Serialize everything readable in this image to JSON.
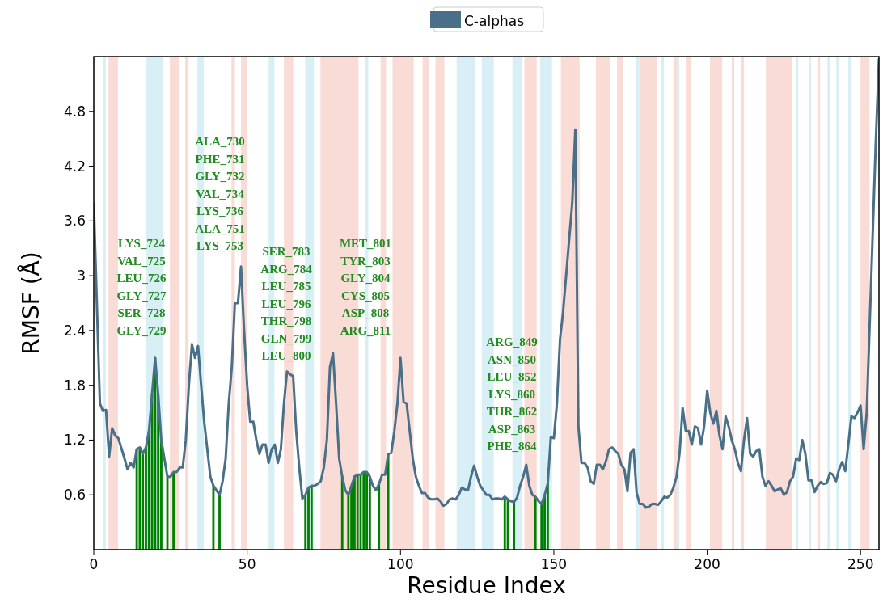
{
  "chart_data": {
    "type": "line",
    "xlabel": "Residue Index",
    "ylabel": "RMSF (Å)",
    "xlim": [
      0,
      256
    ],
    "ylim": [
      0,
      5.4
    ],
    "xticks": [
      0,
      50,
      100,
      150,
      200,
      250
    ],
    "yticks": [
      0.6,
      1.2,
      1.8,
      2.4,
      3.0,
      3.6,
      4.2,
      4.8
    ],
    "grid": false,
    "legend": "top",
    "series": [
      {
        "name": "C-alphas",
        "color": "#4a7089",
        "x": [
          0,
          2,
          3,
          4,
          5,
          6,
          7,
          8,
          10,
          11,
          12,
          13,
          14,
          15,
          16,
          17,
          18,
          19,
          20,
          21,
          22,
          23,
          24,
          25,
          26,
          27,
          28,
          29,
          30,
          31,
          32,
          33,
          34,
          35,
          36,
          37,
          38,
          39,
          40,
          41,
          42,
          43,
          44,
          45,
          46,
          47,
          48,
          49,
          50,
          51,
          52,
          53,
          54,
          55,
          56,
          57,
          58,
          59,
          60,
          61,
          62,
          63,
          64,
          65,
          66,
          67,
          68,
          69,
          70,
          71,
          72,
          73,
          74,
          75,
          76,
          77,
          78,
          79,
          80,
          81,
          82,
          83,
          84,
          85,
          86,
          87,
          88,
          89,
          90,
          91,
          92,
          93,
          94,
          95,
          96,
          97,
          98,
          99,
          100,
          101,
          102,
          103,
          104,
          105,
          106,
          107,
          108,
          109,
          110,
          111,
          112,
          113,
          114,
          115,
          116,
          117,
          118,
          119,
          120,
          121,
          122,
          123,
          124,
          125,
          126,
          127,
          128,
          129,
          130,
          131,
          132,
          133,
          134,
          135,
          136,
          137,
          138,
          139,
          140,
          141,
          142,
          143,
          144,
          145,
          146,
          147,
          148,
          149,
          150,
          151,
          152,
          153,
          154,
          155,
          156,
          157,
          158,
          159,
          160,
          161,
          162,
          163,
          164,
          165,
          166,
          167,
          168,
          169,
          170,
          171,
          172,
          173,
          174,
          175,
          176,
          177,
          178,
          179,
          180,
          181,
          182,
          183,
          184,
          185,
          186,
          187,
          188,
          189,
          190,
          191,
          192,
          193,
          194,
          195,
          196,
          197,
          198,
          199,
          200,
          201,
          202,
          203,
          204,
          205,
          206,
          207,
          208,
          209,
          210,
          211,
          212,
          213,
          214,
          215,
          216,
          217,
          218,
          219,
          220,
          221,
          222,
          223,
          224,
          225,
          226,
          227,
          228,
          229,
          230,
          231,
          232,
          233,
          234,
          235,
          236,
          237,
          238,
          239,
          240,
          241,
          242,
          243,
          244,
          245,
          246,
          247,
          248,
          249,
          250,
          251,
          252,
          253,
          254,
          255,
          256
        ],
        "values": [
          3.8,
          1.6,
          1.52,
          1.53,
          1.02,
          1.33,
          1.25,
          1.22,
          1.0,
          0.88,
          0.95,
          0.9,
          1.1,
          1.12,
          1.05,
          1.12,
          1.3,
          1.7,
          2.1,
          1.7,
          1.2,
          1.0,
          0.8,
          0.8,
          0.85,
          0.85,
          0.9,
          0.9,
          1.2,
          1.8,
          2.25,
          2.1,
          2.23,
          1.8,
          1.4,
          1.1,
          0.8,
          0.7,
          0.65,
          0.6,
          0.75,
          1.0,
          1.6,
          2.0,
          2.7,
          2.7,
          3.1,
          2.4,
          1.8,
          1.4,
          1.4,
          1.2,
          1.05,
          1.15,
          1.15,
          0.95,
          1.1,
          1.15,
          0.95,
          1.1,
          1.6,
          1.95,
          1.92,
          1.9,
          1.3,
          0.9,
          0.56,
          0.6,
          0.68,
          0.7,
          0.7,
          0.72,
          0.75,
          0.9,
          1.2,
          2.0,
          2.15,
          1.6,
          1.0,
          0.8,
          0.65,
          0.6,
          0.7,
          0.8,
          0.82,
          0.82,
          0.85,
          0.85,
          0.8,
          0.7,
          0.65,
          0.72,
          0.82,
          0.82,
          1.05,
          1.06,
          1.3,
          1.6,
          2.1,
          1.62,
          1.6,
          1.3,
          1.0,
          0.8,
          0.7,
          0.62,
          0.62,
          0.57,
          0.55,
          0.55,
          0.56,
          0.53,
          0.48,
          0.5,
          0.55,
          0.56,
          0.55,
          0.6,
          0.68,
          0.66,
          0.65,
          0.8,
          0.92,
          0.8,
          0.7,
          0.65,
          0.6,
          0.6,
          0.55,
          0.56,
          0.56,
          0.55,
          0.58,
          0.55,
          0.53,
          0.52,
          0.57,
          0.7,
          0.8,
          0.93,
          0.7,
          0.6,
          0.58,
          0.53,
          0.5,
          0.6,
          0.72,
          1.23,
          1.22,
          1.6,
          2.3,
          2.6,
          3.0,
          3.4,
          3.8,
          4.6,
          1.35,
          0.95,
          0.95,
          0.9,
          0.75,
          0.72,
          0.93,
          0.93,
          0.88,
          0.97,
          1.1,
          1.12,
          1.08,
          1.05,
          0.93,
          0.88,
          0.64,
          1.06,
          1.1,
          0.62,
          0.5,
          0.5,
          0.46,
          0.47,
          0.5,
          0.5,
          0.49,
          0.53,
          0.58,
          0.57,
          0.6,
          0.68,
          0.8,
          1.06,
          1.55,
          1.3,
          1.3,
          1.15,
          1.35,
          1.33,
          1.15,
          1.35,
          1.74,
          1.5,
          1.38,
          1.52,
          1.25,
          1.1,
          1.46,
          1.35,
          1.2,
          1.1,
          0.95,
          0.86,
          1.2,
          1.44,
          1.05,
          1.02,
          1.08,
          1.1,
          0.8,
          0.7,
          0.75,
          0.7,
          0.64,
          0.66,
          0.67,
          0.6,
          0.63,
          0.75,
          0.8,
          1.0,
          0.98,
          1.2,
          1.05,
          0.76,
          0.76,
          0.63,
          0.7,
          0.74,
          0.72,
          0.73,
          0.84,
          0.82,
          0.75,
          0.88,
          0.96,
          0.86,
          1.15,
          1.46,
          1.44,
          1.5,
          1.58,
          1.1,
          1.5,
          2.5,
          3.5,
          4.5,
          5.38
        ]
      },
      {
        "type": "bar",
        "color": "#008000",
        "x": [
          14,
          15,
          16,
          17,
          18,
          19,
          20,
          21,
          22,
          24,
          26,
          39,
          41,
          69,
          70,
          71,
          81,
          83,
          84,
          85,
          86,
          87,
          88,
          89,
          90,
          93,
          96,
          134,
          135,
          137,
          144,
          146,
          147,
          148
        ],
        "values": [
          1.1,
          1.12,
          1.05,
          1.12,
          1.3,
          1.7,
          2.1,
          1.7,
          1.2,
          0.8,
          0.85,
          0.7,
          0.6,
          0.6,
          0.68,
          0.7,
          0.8,
          0.6,
          0.7,
          0.8,
          0.82,
          0.82,
          0.85,
          0.85,
          0.8,
          0.72,
          1.05,
          0.58,
          0.55,
          0.52,
          0.58,
          0.5,
          0.6,
          0.72
        ]
      }
    ],
    "annotations": [
      "LYS_724\nVAL_725\nLEU_726\nGLY_727\nSER_728\nGLY_729",
      "ALA_730\nPHE_731\nGLY_732\nVAL_734\nLYS_736\nALA_751\nLYS_753",
      "SER_783\nARG_784\nLEU_785\nLEU_796\nTHR_798\nGLN_799\nLEU_800",
      "MET_801\nTYR_803\nGLY_804\nCYS_805\nASP_808\nARG_811",
      "ARG_849\nASN_850\nLEU_852\nLYS_860\nTHR_862\nASP_863\nPHE_864"
    ],
    "bands": [
      {
        "axis": "x",
        "from": 2.9,
        "to": 3.9,
        "color": "#d8eff5"
      },
      {
        "axis": "x",
        "from": 4.8,
        "to": 7.9,
        "color": "#fadcd7"
      },
      {
        "axis": "x",
        "from": 17,
        "to": 22.7,
        "color": "#d8eff5"
      },
      {
        "axis": "x",
        "from": 24.8,
        "to": 27.7,
        "color": "#fadcd7"
      },
      {
        "axis": "x",
        "from": 29.8,
        "to": 30.9,
        "color": "#fadcd7"
      },
      {
        "axis": "x",
        "from": 33.8,
        "to": 35.9,
        "color": "#d8eff5"
      },
      {
        "axis": "x",
        "from": 44.9,
        "to": 46,
        "color": "#fadcd7"
      },
      {
        "axis": "x",
        "from": 48,
        "to": 50,
        "color": "#fadcd7"
      },
      {
        "axis": "x",
        "from": 57,
        "to": 58.9,
        "color": "#d8eff5"
      },
      {
        "axis": "x",
        "from": 62,
        "to": 65,
        "color": "#fadcd7"
      },
      {
        "axis": "x",
        "from": 68.9,
        "to": 71.8,
        "color": "#d8eff5"
      },
      {
        "axis": "x",
        "from": 73.9,
        "to": 86.3,
        "color": "#fadcd7"
      },
      {
        "axis": "x",
        "from": 88.4,
        "to": 89.5,
        "color": "#d8eff5"
      },
      {
        "axis": "x",
        "from": 93.5,
        "to": 95.3,
        "color": "#fadcd7"
      },
      {
        "axis": "x",
        "from": 97.4,
        "to": 104.3,
        "color": "#fadcd7"
      },
      {
        "axis": "x",
        "from": 107.2,
        "to": 109.3,
        "color": "#fadcd7"
      },
      {
        "axis": "x",
        "from": 111.4,
        "to": 114.3,
        "color": "#fadcd7"
      },
      {
        "axis": "x",
        "from": 118.3,
        "to": 124.3,
        "color": "#d8eff5"
      },
      {
        "axis": "x",
        "from": 126.5,
        "to": 130.4,
        "color": "#d8eff5"
      },
      {
        "axis": "x",
        "from": 136.5,
        "to": 139.7,
        "color": "#d8eff5"
      },
      {
        "axis": "x",
        "from": 140.4,
        "to": 144.4,
        "color": "#fadcd7"
      },
      {
        "axis": "x",
        "from": 145.5,
        "to": 149.4,
        "color": "#d8eff5"
      },
      {
        "axis": "x",
        "from": 152.3,
        "to": 158.4,
        "color": "#fadcd7"
      },
      {
        "axis": "x",
        "from": 163.7,
        "to": 168.4,
        "color": "#fadcd7"
      },
      {
        "axis": "x",
        "from": 170.6,
        "to": 172.6,
        "color": "#fadcd7"
      },
      {
        "axis": "x",
        "from": 176.9,
        "to": 177.9,
        "color": "#d8eff5"
      },
      {
        "axis": "x",
        "from": 177.9,
        "to": 183.7,
        "color": "#fadcd7"
      },
      {
        "axis": "x",
        "from": 184.8,
        "to": 185.9,
        "color": "#d8eff5"
      },
      {
        "axis": "x",
        "from": 189,
        "to": 190.1,
        "color": "#fadcd7"
      },
      {
        "axis": "x",
        "from": 190.1,
        "to": 190.9,
        "color": "#d8eff5"
      },
      {
        "axis": "x",
        "from": 193,
        "to": 194.8,
        "color": "#fadcd7"
      },
      {
        "axis": "x",
        "from": 200.9,
        "to": 204.9,
        "color": "#fadcd7"
      },
      {
        "axis": "x",
        "from": 208,
        "to": 208.8,
        "color": "#fadcd7"
      },
      {
        "axis": "x",
        "from": 210.9,
        "to": 212,
        "color": "#fadcd7"
      },
      {
        "axis": "x",
        "from": 219.1,
        "to": 227.8,
        "color": "#fadcd7"
      },
      {
        "axis": "x",
        "from": 228.9,
        "to": 229.7,
        "color": "#d8eff5"
      },
      {
        "axis": "x",
        "from": 233.1,
        "to": 233.9,
        "color": "#d8eff5"
      },
      {
        "axis": "x",
        "from": 236,
        "to": 236.8,
        "color": "#fadcd7"
      },
      {
        "axis": "x",
        "from": 239.2,
        "to": 240,
        "color": "#d8eff5"
      },
      {
        "axis": "x",
        "from": 242.1,
        "to": 242.9,
        "color": "#d8eff5"
      },
      {
        "axis": "x",
        "from": 246,
        "to": 247.1,
        "color": "#d8eff5"
      },
      {
        "axis": "x",
        "from": 250,
        "to": 252.9,
        "color": "#fadcd7"
      }
    ]
  }
}
